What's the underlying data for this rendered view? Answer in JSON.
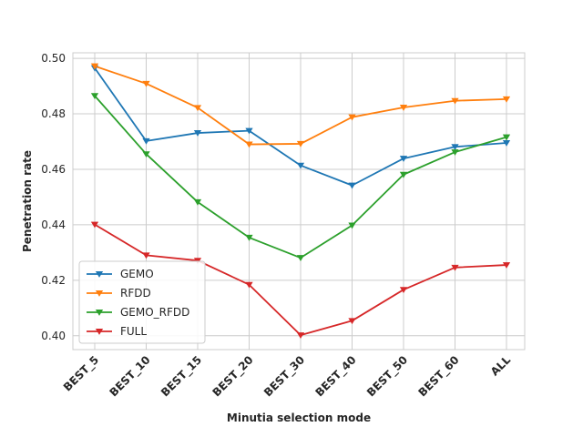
{
  "chart_data": {
    "type": "line",
    "title": "",
    "xlabel": "Minutia selection mode",
    "ylabel": "Penetration rate",
    "categories": [
      "BEST_5",
      "BEST_10",
      "BEST_15",
      "BEST_20",
      "BEST_30",
      "BEST_40",
      "BEST_50",
      "BEST_60",
      "ALL"
    ],
    "ylim": [
      0.395,
      0.502
    ],
    "yticks": [
      0.4,
      0.42,
      0.44,
      0.46,
      0.48,
      0.5
    ],
    "ytick_labels": [
      "0.40",
      "0.42",
      "0.44",
      "0.46",
      "0.48",
      "0.50"
    ],
    "grid": true,
    "legend_position": "lower-left",
    "marker": "triangle-down",
    "series": [
      {
        "name": "GEMO",
        "color": "#1f77b4",
        "values": [
          0.4965,
          0.4702,
          0.4731,
          0.4739,
          0.4614,
          0.4542,
          0.4639,
          0.4681,
          0.4695
        ]
      },
      {
        "name": "RFDD",
        "color": "#ff7f0e",
        "values": [
          0.4972,
          0.4909,
          0.4822,
          0.469,
          0.4692,
          0.4788,
          0.4823,
          0.4847,
          0.4853
        ]
      },
      {
        "name": "GEMO_RFDD",
        "color": "#2ca02c",
        "values": [
          0.4865,
          0.4655,
          0.4482,
          0.4354,
          0.4281,
          0.4398,
          0.4581,
          0.4662,
          0.4716
        ]
      },
      {
        "name": "FULL",
        "color": "#d62728",
        "values": [
          0.4401,
          0.429,
          0.4271,
          0.4184,
          0.4002,
          0.4054,
          0.4166,
          0.4246,
          0.4255
        ]
      }
    ]
  }
}
